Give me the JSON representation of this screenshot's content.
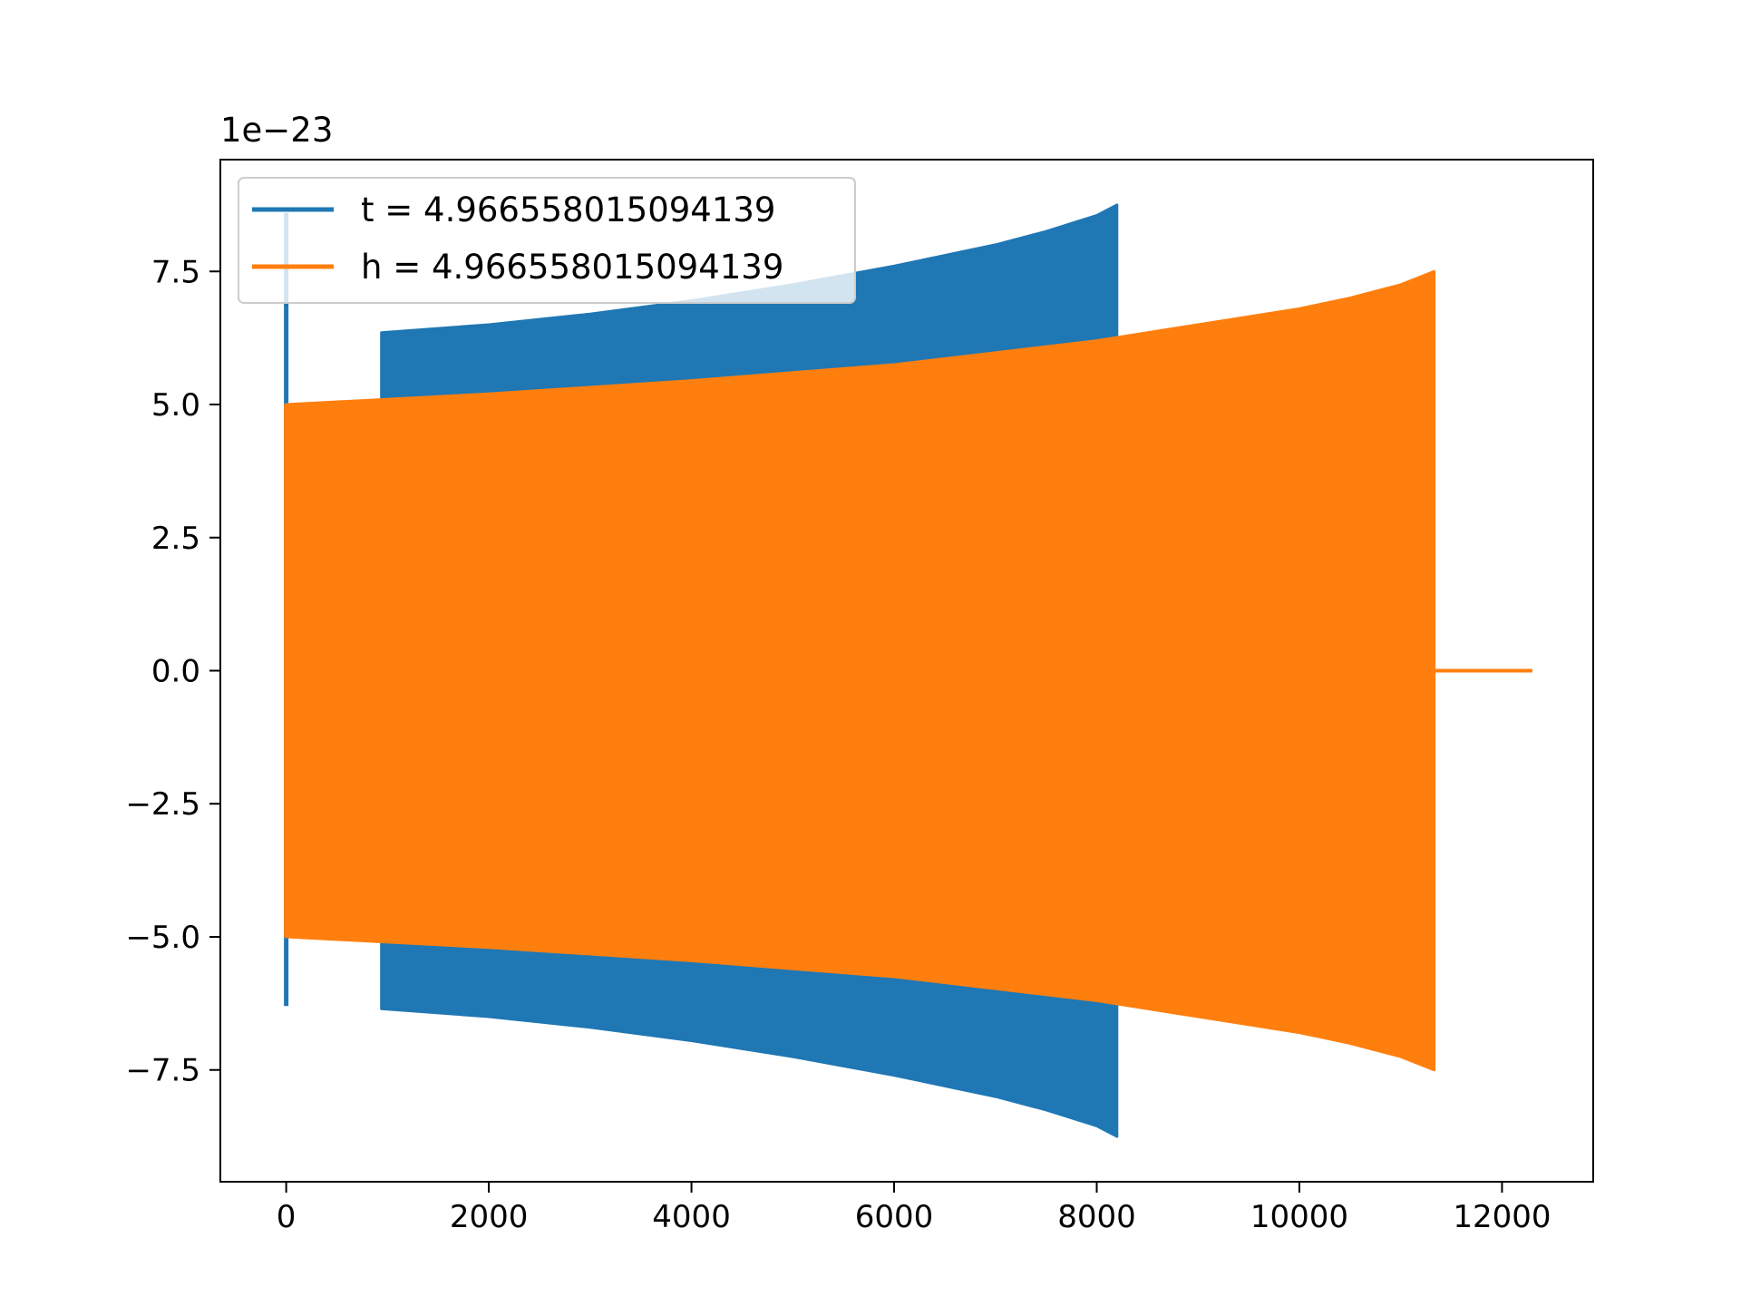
{
  "chart_data": {
    "type": "line",
    "title": "",
    "xlabel": "",
    "ylabel": "",
    "y_offset_text": "1e−23",
    "xlim": [
      -650,
      12900
    ],
    "ylim": [
      -9.6,
      9.6
    ],
    "x_ticks": [
      0,
      2000,
      4000,
      6000,
      8000,
      10000,
      12000
    ],
    "x_tick_labels": [
      "0",
      "2000",
      "4000",
      "6000",
      "8000",
      "10000",
      "12000"
    ],
    "y_ticks": [
      -7.5,
      -5.0,
      -2.5,
      0.0,
      2.5,
      5.0,
      7.5
    ],
    "y_tick_labels": [
      "−7.5",
      "−5.0",
      "−2.5",
      "0.0",
      "2.5",
      "5.0",
      "7.5"
    ],
    "grid": false,
    "legend_position": "top-left",
    "series": [
      {
        "name": "t = 4.966558015094139",
        "color": "#1f77b4",
        "spike": {
          "x": 0,
          "min": -6.3,
          "max": 8.6
        },
        "envelope_x": [
          940,
          2000,
          3000,
          4000,
          5000,
          6000,
          7000,
          7500,
          8000,
          8200
        ],
        "envelope_upper": [
          6.35,
          6.5,
          6.7,
          6.95,
          7.25,
          7.6,
          8.0,
          8.25,
          8.55,
          8.75
        ],
        "envelope_lower": [
          -6.35,
          -6.5,
          -6.7,
          -6.95,
          -7.25,
          -7.6,
          -8.0,
          -8.25,
          -8.55,
          -8.75
        ]
      },
      {
        "name": "h = 4.966558015094139",
        "color": "#ff7f0e",
        "start": {
          "x": 0,
          "min": -5.0,
          "max": 5.0
        },
        "envelope_x": [
          0,
          2000,
          4000,
          6000,
          8000,
          9000,
          10000,
          10500,
          11000,
          11330
        ],
        "envelope_upper": [
          5.0,
          5.2,
          5.45,
          5.75,
          6.2,
          6.5,
          6.8,
          7.0,
          7.25,
          7.5
        ],
        "envelope_lower": [
          -5.0,
          -5.2,
          -5.45,
          -5.75,
          -6.2,
          -6.5,
          -6.8,
          -7.0,
          -7.25,
          -7.5
        ],
        "flat_segment": {
          "x": [
            11330,
            12300
          ],
          "y": 0.0
        }
      }
    ]
  }
}
